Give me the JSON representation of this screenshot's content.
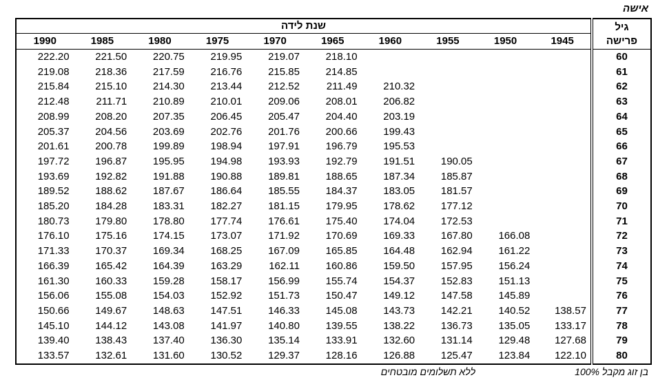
{
  "title": "אישה",
  "table": {
    "group_header": "שנת לידה",
    "age_header": [
      "גיל",
      "פרישה"
    ],
    "years": [
      "1990",
      "1985",
      "1980",
      "1975",
      "1970",
      "1965",
      "1960",
      "1955",
      "1950",
      "1945"
    ],
    "rows": [
      {
        "age": "60",
        "values": [
          "222.20",
          "221.50",
          "220.75",
          "219.95",
          "219.07",
          "218.10",
          null,
          null,
          null,
          null
        ]
      },
      {
        "age": "61",
        "values": [
          "219.08",
          "218.36",
          "217.59",
          "216.76",
          "215.85",
          "214.85",
          null,
          null,
          null,
          null
        ]
      },
      {
        "age": "62",
        "values": [
          "215.84",
          "215.10",
          "214.30",
          "213.44",
          "212.52",
          "211.49",
          "210.32",
          null,
          null,
          null
        ]
      },
      {
        "age": "63",
        "values": [
          "212.48",
          "211.71",
          "210.89",
          "210.01",
          "209.06",
          "208.01",
          "206.82",
          null,
          null,
          null
        ]
      },
      {
        "age": "64",
        "values": [
          "208.99",
          "208.20",
          "207.35",
          "206.45",
          "205.47",
          "204.40",
          "203.19",
          null,
          null,
          null
        ]
      },
      {
        "age": "65",
        "values": [
          "205.37",
          "204.56",
          "203.69",
          "202.76",
          "201.76",
          "200.66",
          "199.43",
          null,
          null,
          null
        ]
      },
      {
        "age": "66",
        "values": [
          "201.61",
          "200.78",
          "199.89",
          "198.94",
          "197.91",
          "196.79",
          "195.53",
          null,
          null,
          null
        ]
      },
      {
        "age": "67",
        "values": [
          "197.72",
          "196.87",
          "195.95",
          "194.98",
          "193.93",
          "192.79",
          "191.51",
          "190.05",
          null,
          null
        ]
      },
      {
        "age": "68",
        "values": [
          "193.69",
          "192.82",
          "191.88",
          "190.88",
          "189.81",
          "188.65",
          "187.34",
          "185.87",
          null,
          null
        ]
      },
      {
        "age": "69",
        "values": [
          "189.52",
          "188.62",
          "187.67",
          "186.64",
          "185.55",
          "184.37",
          "183.05",
          "181.57",
          null,
          null
        ]
      },
      {
        "age": "70",
        "values": [
          "185.20",
          "184.28",
          "183.31",
          "182.27",
          "181.15",
          "179.95",
          "178.62",
          "177.12",
          null,
          null
        ]
      },
      {
        "age": "71",
        "values": [
          "180.73",
          "179.80",
          "178.80",
          "177.74",
          "176.61",
          "175.40",
          "174.04",
          "172.53",
          null,
          null
        ]
      },
      {
        "age": "72",
        "values": [
          "176.10",
          "175.16",
          "174.15",
          "173.07",
          "171.92",
          "170.69",
          "169.33",
          "167.80",
          "166.08",
          null
        ]
      },
      {
        "age": "73",
        "values": [
          "171.33",
          "170.37",
          "169.34",
          "168.25",
          "167.09",
          "165.85",
          "164.48",
          "162.94",
          "161.22",
          null
        ]
      },
      {
        "age": "74",
        "values": [
          "166.39",
          "165.42",
          "164.39",
          "163.29",
          "162.11",
          "160.86",
          "159.50",
          "157.95",
          "156.24",
          null
        ]
      },
      {
        "age": "75",
        "values": [
          "161.30",
          "160.33",
          "159.28",
          "158.17",
          "156.99",
          "155.74",
          "154.37",
          "152.83",
          "151.13",
          null
        ]
      },
      {
        "age": "76",
        "values": [
          "156.06",
          "155.08",
          "154.03",
          "152.92",
          "151.73",
          "150.47",
          "149.12",
          "147.58",
          "145.89",
          null
        ]
      },
      {
        "age": "77",
        "values": [
          "150.66",
          "149.67",
          "148.63",
          "147.51",
          "146.33",
          "145.08",
          "143.73",
          "142.21",
          "140.52",
          "138.57"
        ]
      },
      {
        "age": "78",
        "values": [
          "145.10",
          "144.12",
          "143.08",
          "141.97",
          "140.80",
          "139.55",
          "138.22",
          "136.73",
          "135.05",
          "133.17"
        ]
      },
      {
        "age": "79",
        "values": [
          "139.40",
          "138.43",
          "137.40",
          "136.30",
          "135.14",
          "133.91",
          "132.60",
          "131.14",
          "129.48",
          "127.68"
        ]
      },
      {
        "age": "80",
        "values": [
          "133.57",
          "132.61",
          "131.60",
          "130.52",
          "129.37",
          "128.16",
          "126.88",
          "125.47",
          "123.84",
          "122.10"
        ]
      }
    ]
  },
  "footer": {
    "left": "ללא תשלומים מובטחים",
    "right": "בן זוג מקבל 100%"
  }
}
